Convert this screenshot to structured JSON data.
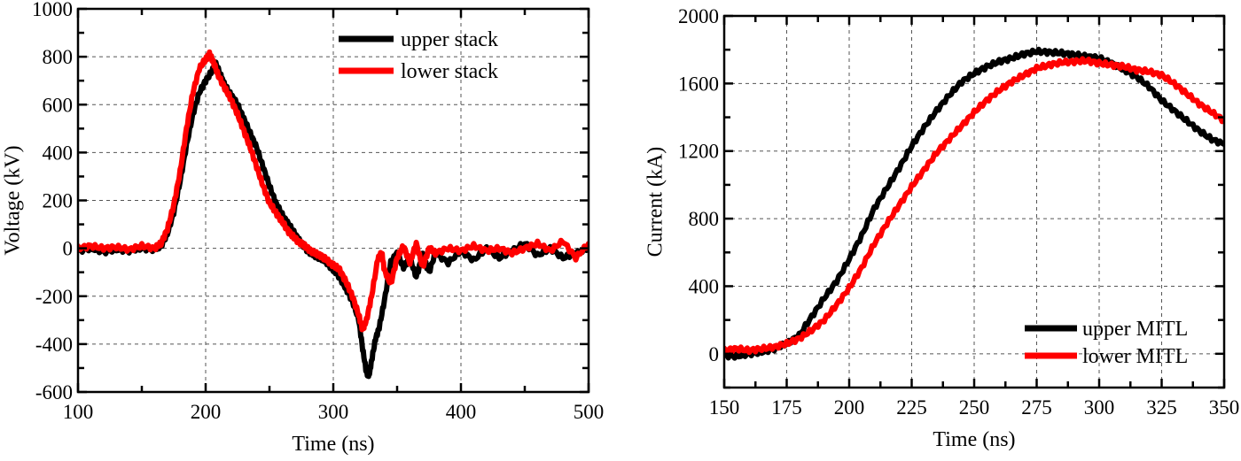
{
  "chart_data": [
    {
      "type": "line",
      "title": "",
      "xlabel": "Time (ns)",
      "ylabel": "Voltage (kV)",
      "xlim": [
        100,
        500
      ],
      "ylim": [
        -600,
        1000
      ],
      "xticks": [
        100,
        200,
        300,
        400,
        500
      ],
      "xtick_labels": [
        "100",
        "200",
        "300",
        "400",
        "500"
      ],
      "yticks": [
        -600,
        -400,
        -200,
        0,
        200,
        400,
        600,
        800,
        1000
      ],
      "ytick_labels": [
        "-600",
        "-400",
        "-200",
        "0",
        "200",
        "400",
        "600",
        "800",
        "1000"
      ],
      "x_minor": 50,
      "y_minor": 100,
      "grid": true,
      "legend_position": "top-right",
      "series": [
        {
          "name": "upper stack",
          "color": "#000000",
          "x": [
            100,
            110,
            120,
            130,
            140,
            150,
            160,
            165,
            170,
            175,
            180,
            185,
            190,
            195,
            200,
            205,
            208,
            212,
            215,
            220,
            225,
            230,
            235,
            240,
            245,
            250,
            255,
            260,
            265,
            270,
            275,
            280,
            285,
            290,
            295,
            300,
            305,
            310,
            315,
            320,
            323,
            326,
            328,
            330,
            333,
            336,
            340,
            345,
            350,
            355,
            360,
            365,
            370,
            375,
            380,
            390,
            400,
            410,
            420,
            430,
            440,
            450,
            460,
            470,
            480,
            490,
            500
          ],
          "y": [
            -10,
            0,
            -15,
            -5,
            -10,
            0,
            -5,
            10,
            60,
            150,
            280,
            430,
            560,
            650,
            700,
            740,
            770,
            720,
            680,
            640,
            600,
            540,
            480,
            420,
            340,
            260,
            190,
            140,
            100,
            60,
            20,
            -10,
            -30,
            -40,
            -60,
            -90,
            -120,
            -170,
            -220,
            -300,
            -420,
            -520,
            -530,
            -470,
            -380,
            -330,
            -220,
            -60,
            -20,
            -80,
            -40,
            -120,
            -30,
            -100,
            -20,
            -60,
            -10,
            -50,
            0,
            -40,
            -10,
            20,
            -30,
            0,
            -40,
            -20,
            0
          ]
        },
        {
          "name": "lower stack",
          "color": "#ff0000",
          "x": [
            100,
            110,
            120,
            130,
            140,
            150,
            160,
            165,
            170,
            175,
            180,
            185,
            190,
            195,
            200,
            203,
            206,
            210,
            215,
            220,
            225,
            230,
            235,
            240,
            245,
            250,
            255,
            260,
            265,
            270,
            275,
            280,
            285,
            290,
            295,
            300,
            305,
            310,
            315,
            320,
            323,
            326,
            330,
            335,
            338,
            340,
            345,
            350,
            355,
            360,
            365,
            370,
            375,
            380,
            390,
            400,
            410,
            420,
            430,
            440,
            450,
            460,
            470,
            480,
            490,
            500
          ],
          "y": [
            0,
            10,
            0,
            5,
            -5,
            10,
            0,
            20,
            80,
            180,
            320,
            500,
            650,
            750,
            790,
            810,
            780,
            720,
            670,
            620,
            560,
            490,
            420,
            340,
            260,
            190,
            150,
            110,
            70,
            40,
            20,
            0,
            -20,
            -30,
            -50,
            -70,
            -90,
            -140,
            -200,
            -280,
            -340,
            -300,
            -200,
            -40,
            -20,
            -90,
            -150,
            -40,
            10,
            -60,
            20,
            -80,
            0,
            -20,
            0,
            -10,
            10,
            -10,
            0,
            -20,
            0,
            20,
            -10,
            30,
            -40,
            20
          ]
        }
      ]
    },
    {
      "type": "line",
      "title": "",
      "xlabel": "Time (ns)",
      "ylabel": "Current (kA)",
      "xlim": [
        150,
        350
      ],
      "ylim": [
        -200,
        2000
      ],
      "xticks": [
        150,
        175,
        200,
        225,
        250,
        275,
        300,
        325,
        350
      ],
      "xtick_labels": [
        "150",
        "175",
        "200",
        "225",
        "250",
        "275",
        "300",
        "325",
        "350"
      ],
      "yticks": [
        0,
        400,
        800,
        1200,
        1600,
        2000
      ],
      "ytick_labels": [
        "0",
        "400",
        "800",
        "1200",
        "1600",
        "2000"
      ],
      "x_minor": 12.5,
      "y_minor": 200,
      "grid": true,
      "legend_position": "bottom-right",
      "series": [
        {
          "name": "upper MITL",
          "color": "#000000",
          "x": [
            150,
            155,
            160,
            165,
            170,
            175,
            180,
            185,
            190,
            195,
            200,
            205,
            210,
            215,
            220,
            225,
            230,
            235,
            240,
            245,
            250,
            255,
            260,
            265,
            270,
            275,
            280,
            285,
            290,
            295,
            300,
            305,
            310,
            315,
            320,
            325,
            330,
            335,
            340,
            345,
            350
          ],
          "y": [
            -10,
            -15,
            0,
            10,
            30,
            60,
            110,
            220,
            330,
            430,
            560,
            700,
            860,
            980,
            1100,
            1230,
            1340,
            1440,
            1530,
            1610,
            1660,
            1700,
            1730,
            1750,
            1775,
            1790,
            1785,
            1780,
            1770,
            1760,
            1750,
            1720,
            1680,
            1640,
            1580,
            1500,
            1440,
            1380,
            1320,
            1270,
            1240
          ]
        },
        {
          "name": "lower MITL",
          "color": "#ff0000",
          "x": [
            150,
            155,
            160,
            165,
            170,
            175,
            180,
            185,
            190,
            195,
            200,
            205,
            210,
            215,
            220,
            225,
            230,
            235,
            240,
            245,
            250,
            255,
            260,
            265,
            270,
            275,
            280,
            285,
            290,
            295,
            300,
            305,
            310,
            315,
            320,
            325,
            330,
            335,
            340,
            345,
            350
          ],
          "y": [
            20,
            30,
            20,
            30,
            40,
            60,
            90,
            140,
            200,
            290,
            390,
            510,
            650,
            770,
            880,
            990,
            1090,
            1190,
            1270,
            1350,
            1430,
            1500,
            1560,
            1610,
            1650,
            1690,
            1710,
            1725,
            1730,
            1735,
            1720,
            1710,
            1700,
            1680,
            1670,
            1650,
            1600,
            1540,
            1480,
            1430,
            1380
          ]
        }
      ]
    }
  ]
}
